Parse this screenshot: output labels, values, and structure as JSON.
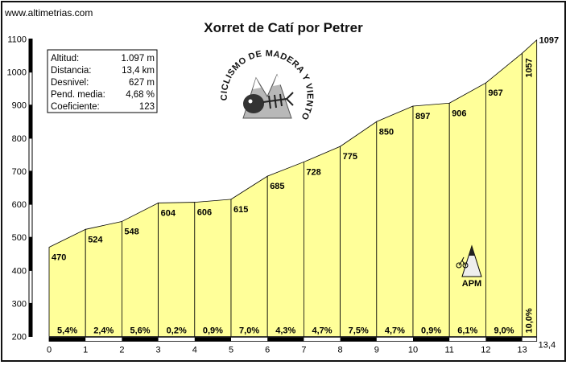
{
  "site": "www.altimetrias.com",
  "chart_data": {
    "type": "area",
    "title": "Xorret de Catí por Petrer",
    "ylim": [
      200,
      1100
    ],
    "y_ticks": [
      200,
      300,
      400,
      500,
      600,
      700,
      800,
      900,
      1000,
      1100
    ],
    "xlim": [
      0,
      13.4
    ],
    "x_ticks": [
      0,
      1,
      2,
      3,
      4,
      5,
      6,
      7,
      8,
      9,
      10,
      11,
      12,
      13
    ],
    "x_end_label": "13,4",
    "x": [
      0,
      1,
      2,
      3,
      4,
      5,
      6,
      7,
      8,
      9,
      10,
      11,
      12,
      13,
      13.4
    ],
    "altitudes": [
      470,
      524,
      548,
      604,
      606,
      615,
      685,
      728,
      775,
      850,
      897,
      906,
      967,
      1057,
      1097
    ],
    "altitude_labels": [
      "470",
      "524",
      "548",
      "604",
      "606",
      "615",
      "685",
      "728",
      "775",
      "850",
      "897",
      "906",
      "967",
      "1057",
      "1097"
    ],
    "gradients": [
      "5,4%",
      "2,4%",
      "5,6%",
      "0,2%",
      "0,9%",
      "7,0%",
      "4,3%",
      "4,7%",
      "7,5%",
      "4,7%",
      "0,9%",
      "6,1%",
      "9,0%",
      "10,0%"
    ],
    "fill_color": "#ffff99",
    "grid": false
  },
  "stats": [
    {
      "label": "Altitud:",
      "value": "1.097 m"
    },
    {
      "label": "Distancia:",
      "value": "13,4 km"
    },
    {
      "label": "Desnivel:",
      "value": "627 m"
    },
    {
      "label": "Pend. media:",
      "value": "4,68 %"
    },
    {
      "label": "Coeficiente:",
      "value": "123"
    }
  ],
  "logo": {
    "text": "CICLISMO DE MADERA Y VIENTO",
    "icon": "mountain-fish-logo"
  },
  "marker": {
    "label": "APM",
    "icon": "mountain-cyclist-icon"
  }
}
